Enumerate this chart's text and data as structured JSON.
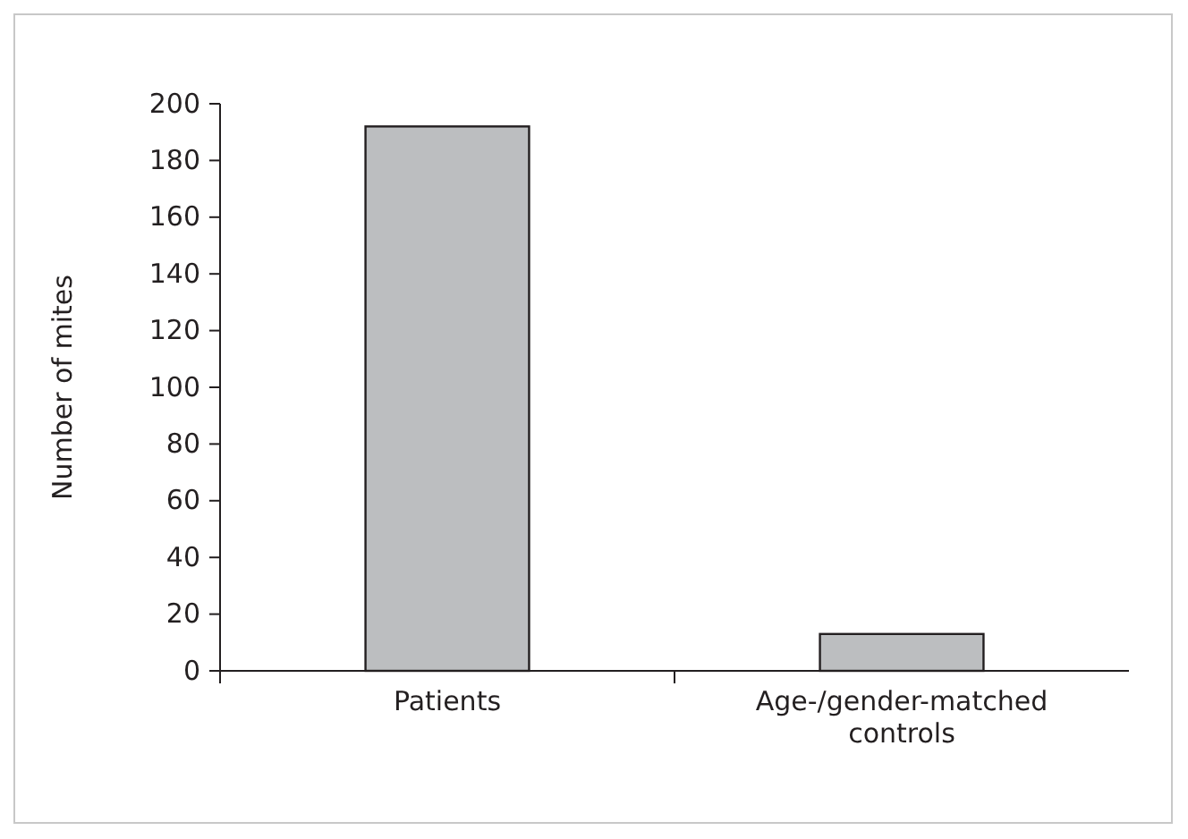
{
  "chart_data": {
    "type": "bar",
    "ylabel": "Number of mites",
    "categories": [
      "Patients",
      "Age-/gender-matched\ncontrols"
    ],
    "values": [
      192,
      13
    ],
    "color": "#bcbec0",
    "ylim": [
      0,
      200
    ],
    "yticks": [
      0,
      20,
      40,
      60,
      80,
      100,
      120,
      140,
      160,
      180,
      200
    ],
    "grid": false
  }
}
